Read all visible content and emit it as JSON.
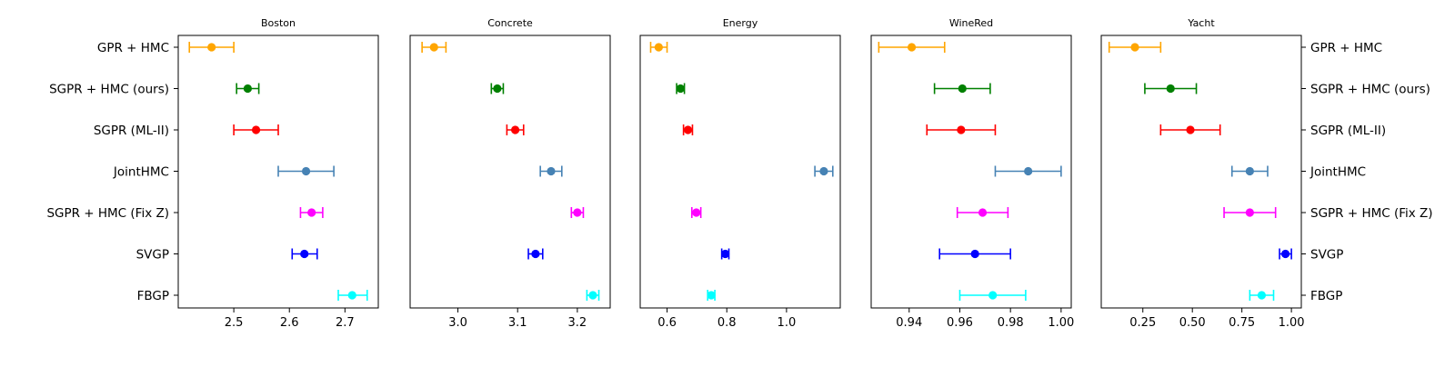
{
  "chart_data": {
    "type": "scatter",
    "subtype": "errorbar-forest-plot",
    "methods": [
      "GPR + HMC",
      "SGPR + HMC (ours)",
      "SGPR (ML-II)",
      "JointHMC",
      "SGPR + HMC (Fix Z)",
      "SVGP",
      "FBGP"
    ],
    "method_colors": [
      "#ffa500",
      "#008000",
      "#ff0000",
      "#4682b4",
      "#ff00ff",
      "#0000ff",
      "#00ffff"
    ],
    "panels": [
      {
        "title": "Boston",
        "xlim": [
          2.4,
          2.76
        ],
        "xticks": [
          2.5,
          2.6,
          2.7
        ],
        "xtick_labels": [
          "2.5",
          "2.6",
          "2.7"
        ],
        "points": [
          {
            "method": "GPR + HMC",
            "mean": 2.46,
            "low": 2.42,
            "high": 2.5
          },
          {
            "method": "SGPR + HMC (ours)",
            "mean": 2.525,
            "low": 2.505,
            "high": 2.545
          },
          {
            "method": "SGPR (ML-II)",
            "mean": 2.54,
            "low": 2.5,
            "high": 2.58
          },
          {
            "method": "JointHMC",
            "mean": 2.63,
            "low": 2.58,
            "high": 2.68
          },
          {
            "method": "SGPR + HMC (Fix Z)",
            "mean": 2.64,
            "low": 2.62,
            "high": 2.66
          },
          {
            "method": "SVGP",
            "mean": 2.627,
            "low": 2.605,
            "high": 2.65
          },
          {
            "method": "FBGP",
            "mean": 2.713,
            "low": 2.688,
            "high": 2.74
          }
        ]
      },
      {
        "title": "Concrete",
        "xlim": [
          2.92,
          3.255
        ],
        "xticks": [
          3.0,
          3.1,
          3.2
        ],
        "xtick_labels": [
          "3.0",
          "3.1",
          "3.2"
        ],
        "points": [
          {
            "method": "GPR + HMC",
            "mean": 2.96,
            "low": 2.94,
            "high": 2.98
          },
          {
            "method": "SGPR + HMC (ours)",
            "mean": 3.066,
            "low": 3.056,
            "high": 3.076
          },
          {
            "method": "SGPR (ML-II)",
            "mean": 3.096,
            "low": 3.082,
            "high": 3.11
          },
          {
            "method": "JointHMC",
            "mean": 3.156,
            "low": 3.138,
            "high": 3.174
          },
          {
            "method": "SGPR + HMC (Fix Z)",
            "mean": 3.2,
            "low": 3.19,
            "high": 3.21
          },
          {
            "method": "SVGP",
            "mean": 3.13,
            "low": 3.118,
            "high": 3.142
          },
          {
            "method": "FBGP",
            "mean": 3.226,
            "low": 3.216,
            "high": 3.236
          }
        ]
      },
      {
        "title": "Energy",
        "xlim": [
          0.51,
          1.18
        ],
        "xticks": [
          0.6,
          0.8,
          1.0
        ],
        "xtick_labels": [
          "0.6",
          "0.8",
          "1.0"
        ],
        "points": [
          {
            "method": "GPR + HMC",
            "mean": 0.572,
            "low": 0.545,
            "high": 0.6
          },
          {
            "method": "SGPR + HMC (ours)",
            "mean": 0.645,
            "low": 0.632,
            "high": 0.658
          },
          {
            "method": "SGPR (ML-II)",
            "mean": 0.67,
            "low": 0.655,
            "high": 0.685
          },
          {
            "method": "JointHMC",
            "mean": 1.125,
            "low": 1.095,
            "high": 1.155
          },
          {
            "method": "SGPR + HMC (Fix Z)",
            "mean": 0.698,
            "low": 0.683,
            "high": 0.713
          },
          {
            "method": "SVGP",
            "mean": 0.795,
            "low": 0.783,
            "high": 0.807
          },
          {
            "method": "FBGP",
            "mean": 0.748,
            "low": 0.736,
            "high": 0.76
          }
        ]
      },
      {
        "title": "WineRed",
        "xlim": [
          0.925,
          1.004
        ],
        "xticks": [
          0.94,
          0.96,
          0.98,
          1.0
        ],
        "xtick_labels": [
          "0.94",
          "0.96",
          "0.98",
          "1.00"
        ],
        "points": [
          {
            "method": "GPR + HMC",
            "mean": 0.941,
            "low": 0.928,
            "high": 0.954
          },
          {
            "method": "SGPR + HMC (ours)",
            "mean": 0.961,
            "low": 0.95,
            "high": 0.972
          },
          {
            "method": "SGPR (ML-II)",
            "mean": 0.9605,
            "low": 0.947,
            "high": 0.974
          },
          {
            "method": "JointHMC",
            "mean": 0.987,
            "low": 0.974,
            "high": 1.0
          },
          {
            "method": "SGPR + HMC (Fix Z)",
            "mean": 0.969,
            "low": 0.959,
            "high": 0.979
          },
          {
            "method": "SVGP",
            "mean": 0.966,
            "low": 0.952,
            "high": 0.98
          },
          {
            "method": "FBGP",
            "mean": 0.973,
            "low": 0.96,
            "high": 0.986
          }
        ]
      },
      {
        "title": "Yacht",
        "xlim": [
          0.04,
          1.05
        ],
        "xticks": [
          0.25,
          0.5,
          0.75,
          1.0
        ],
        "xtick_labels": [
          "0.25",
          "0.50",
          "0.75",
          "1.00"
        ],
        "points": [
          {
            "method": "GPR + HMC",
            "mean": 0.21,
            "low": 0.08,
            "high": 0.34
          },
          {
            "method": "SGPR + HMC (ours)",
            "mean": 0.39,
            "low": 0.26,
            "high": 0.52
          },
          {
            "method": "SGPR (ML-II)",
            "mean": 0.49,
            "low": 0.34,
            "high": 0.64
          },
          {
            "method": "JointHMC",
            "mean": 0.79,
            "low": 0.7,
            "high": 0.88
          },
          {
            "method": "SGPR + HMC (Fix Z)",
            "mean": 0.79,
            "low": 0.66,
            "high": 0.92
          },
          {
            "method": "SVGP",
            "mean": 0.97,
            "low": 0.94,
            "high": 1.0
          },
          {
            "method": "FBGP",
            "mean": 0.85,
            "low": 0.79,
            "high": 0.91
          }
        ]
      }
    ],
    "ylabels_left": true,
    "ylabels_right": true,
    "grid": false,
    "legend": "none"
  }
}
